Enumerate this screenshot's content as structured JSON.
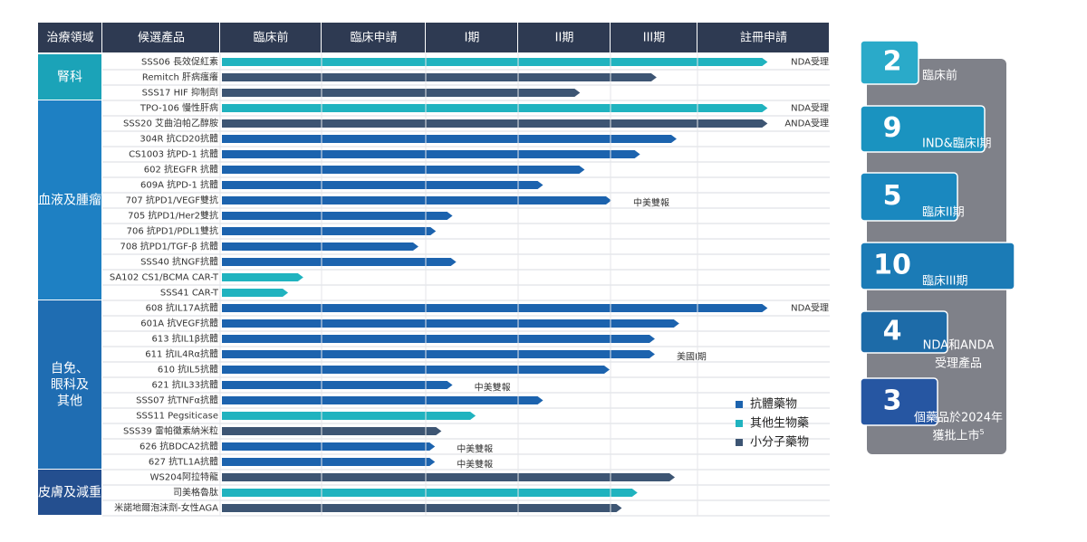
{
  "pipeline": {
    "headers": [
      "治療領域",
      "候選產品",
      "臨床前",
      "臨床申請",
      "I期",
      "II期",
      "III期",
      "註冊申請"
    ],
    "legend": [
      {
        "kind": "antibody",
        "label": "抗體藥物",
        "color": "#1c63ae"
      },
      {
        "kind": "biologic",
        "label": "其他生物藥",
        "color": "#20b3bf"
      },
      {
        "kind": "small_molecule",
        "label": "小分子藥物",
        "color": "#3d5573"
      }
    ],
    "groups": [
      {
        "name": "腎科",
        "color": "#1ba3b8",
        "rows": [
          {
            "name": "SSS06 長效促紅素",
            "end": 5.53,
            "kind": "biologic",
            "note": "NDA受理"
          },
          {
            "name": "Remitch 肝病瘙癢",
            "end": 4.53,
            "kind": "small_molecule"
          },
          {
            "name": "SSS17 HIF 抑制劑",
            "end": 3.67,
            "kind": "small_molecule"
          }
        ]
      },
      {
        "name": "血液及腫瘤",
        "color": "#1e80c3",
        "rows": [
          {
            "name": "TPO-106 慢性肝病",
            "end": 5.53,
            "kind": "biologic",
            "note": "NDA受理"
          },
          {
            "name": "SSS20 艾曲泊帕乙醇胺",
            "end": 5.53,
            "kind": "small_molecule",
            "note": "ANDA受理"
          },
          {
            "name": "304R 抗CD20抗體",
            "end": 4.76,
            "kind": "antibody"
          },
          {
            "name": "CS1003 抗PD-1 抗體",
            "end": 4.34,
            "kind": "antibody"
          },
          {
            "name": "602 抗EGFR 抗體",
            "end": 3.72,
            "kind": "antibody"
          },
          {
            "name": "609A 抗PD-1 抗體",
            "end": 3.27,
            "kind": "antibody"
          },
          {
            "name": "707 抗PD1/VEGF雙抗",
            "end": 4.01,
            "kind": "antibody",
            "note": "中美雙報"
          },
          {
            "name": "705 抗PD1/Her2雙抗",
            "end": 2.29,
            "kind": "antibody"
          },
          {
            "name": "706 抗PD1/PDL1雙抗",
            "end": 2.11,
            "kind": "antibody"
          },
          {
            "name": "708 抗PD1/TGF-β 抗體",
            "end": 1.93,
            "kind": "antibody"
          },
          {
            "name": "SSS40 抗NGF抗體",
            "end": 2.33,
            "kind": "antibody"
          },
          {
            "name": "SA102 CS1/BCMA CAR-T",
            "end": 0.82,
            "kind": "biologic"
          },
          {
            "name": "SSS41 CAR-T",
            "end": 0.67,
            "kind": "biologic"
          }
        ]
      },
      {
        "name": "自免、眼科及其他",
        "color": "#1f6db2",
        "rows": [
          {
            "name": "608 抗IL17A抗體",
            "end": 5.53,
            "kind": "antibody",
            "note": "NDA受理"
          },
          {
            "name": "601A 抗VEGF抗體",
            "end": 4.79,
            "kind": "antibody"
          },
          {
            "name": "613 抗IL1β抗體",
            "end": 4.51,
            "kind": "antibody"
          },
          {
            "name": "611 抗IL4Rα抗體",
            "end": 4.51,
            "kind": "antibody",
            "note": "美國I期"
          },
          {
            "name": "610 抗IL5抗體",
            "end": 3.99,
            "kind": "antibody"
          },
          {
            "name": "621 抗IL33抗體",
            "end": 2.29,
            "kind": "antibody",
            "note": "中美雙報"
          },
          {
            "name": "SSS07 抗TNFα抗體",
            "end": 3.27,
            "kind": "antibody"
          },
          {
            "name": "SSS11 Pegsiticase",
            "end": 2.54,
            "kind": "biologic"
          },
          {
            "name": "SSS39 雷帕黴素納米粒",
            "end": 2.17,
            "kind": "small_molecule"
          },
          {
            "name": "626 抗BDCA2抗體",
            "end": 2.1,
            "kind": "antibody",
            "note": "中美雙報"
          },
          {
            "name": "627 抗TL1A抗體",
            "end": 2.1,
            "kind": "antibody",
            "note": "中美雙報"
          }
        ]
      },
      {
        "name": "皮膚及減重",
        "color": "#244f8f",
        "rows": [
          {
            "name": "WS204阿拉特龍",
            "end": 4.74,
            "kind": "small_molecule"
          },
          {
            "name": "司美格魯肽",
            "end": 4.31,
            "kind": "biologic"
          },
          {
            "name": "米諾地爾泡沫劑-女性AGA",
            "end": 4.13,
            "kind": "small_molecule"
          }
        ]
      }
    ]
  },
  "summary": [
    {
      "count": 2,
      "label": "臨床前"
    },
    {
      "count": 9,
      "label": "IND&臨床I期"
    },
    {
      "count": 5,
      "label": "臨床II期"
    },
    {
      "count": 10,
      "label": "臨床III期"
    },
    {
      "count": 4,
      "label": "NDA和ANDA",
      "label2": "受理產品"
    },
    {
      "count": 3,
      "label": "個藥品於2024年",
      "label2": "獲批上市",
      "footnote": "5"
    }
  ]
}
